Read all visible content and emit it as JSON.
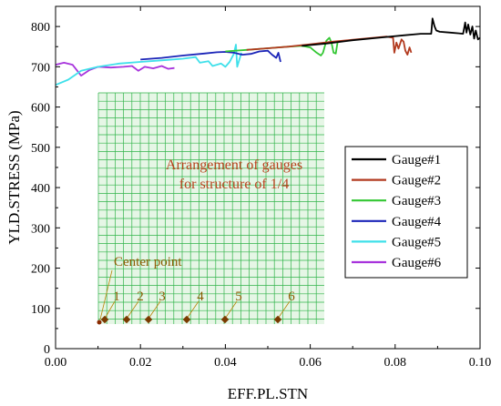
{
  "chart_data": {
    "type": "line",
    "xlabel": "EFF.PL.STN",
    "ylabel": "YLD.STRESS (MPa)",
    "xlim": [
      0,
      0.1
    ],
    "ylim": [
      0,
      850
    ],
    "xticks": [
      "0.00",
      "0.02",
      "0.04",
      "0.06",
      "0.08",
      "0.10"
    ],
    "yticks": [
      "0",
      "100",
      "200",
      "300",
      "400",
      "500",
      "600",
      "700",
      "800"
    ],
    "legend_position": "right",
    "series": [
      {
        "name": "Gauge#1",
        "color": "#000000",
        "points": [
          [
            0.058,
            752
          ],
          [
            0.064,
            758
          ],
          [
            0.07,
            766
          ],
          [
            0.076,
            772
          ],
          [
            0.082,
            778
          ],
          [
            0.086,
            782
          ],
          [
            0.0885,
            782
          ],
          [
            0.0888,
            820
          ],
          [
            0.0893,
            800
          ],
          [
            0.0897,
            790
          ],
          [
            0.0905,
            787
          ],
          [
            0.093,
            785
          ],
          [
            0.095,
            783
          ],
          [
            0.096,
            782
          ],
          [
            0.0965,
            810
          ],
          [
            0.0968,
            785
          ],
          [
            0.0972,
            805
          ],
          [
            0.0977,
            780
          ],
          [
            0.0982,
            800
          ],
          [
            0.0986,
            770
          ],
          [
            0.099,
            790
          ],
          [
            0.0995,
            768
          ],
          [
            0.1,
            772
          ]
        ]
      },
      {
        "name": "Gauge#2",
        "color": "#b23a1f",
        "points": [
          [
            0.045,
            742
          ],
          [
            0.05,
            746
          ],
          [
            0.055,
            750
          ],
          [
            0.06,
            756
          ],
          [
            0.065,
            762
          ],
          [
            0.07,
            767
          ],
          [
            0.074,
            771
          ],
          [
            0.078,
            775
          ],
          [
            0.0795,
            772
          ],
          [
            0.0798,
            735
          ],
          [
            0.0803,
            760
          ],
          [
            0.0808,
            745
          ],
          [
            0.0815,
            768
          ],
          [
            0.082,
            762
          ],
          [
            0.0824,
            740
          ],
          [
            0.0829,
            730
          ],
          [
            0.0834,
            748
          ],
          [
            0.0838,
            735
          ]
        ]
      },
      {
        "name": "Gauge#3",
        "color": "#33c733",
        "points": [
          [
            0.04,
            738
          ],
          [
            0.045,
            742
          ],
          [
            0.05,
            746
          ],
          [
            0.055,
            750
          ],
          [
            0.058,
            752
          ],
          [
            0.06,
            748
          ],
          [
            0.0615,
            735
          ],
          [
            0.0625,
            728
          ],
          [
            0.063,
            735
          ],
          [
            0.0638,
            765
          ],
          [
            0.0645,
            772
          ],
          [
            0.065,
            760
          ],
          [
            0.0655,
            735
          ],
          [
            0.066,
            733
          ],
          [
            0.0665,
            765
          ]
        ]
      },
      {
        "name": "Gauge#4",
        "color": "#1a24b8",
        "points": [
          [
            0.02,
            718
          ],
          [
            0.025,
            722
          ],
          [
            0.03,
            728
          ],
          [
            0.035,
            733
          ],
          [
            0.038,
            736
          ],
          [
            0.04,
            737
          ],
          [
            0.042,
            735
          ],
          [
            0.044,
            730
          ],
          [
            0.046,
            732
          ],
          [
            0.048,
            738
          ],
          [
            0.05,
            740
          ],
          [
            0.051,
            730
          ],
          [
            0.052,
            722
          ],
          [
            0.0525,
            735
          ],
          [
            0.053,
            712
          ]
        ]
      },
      {
        "name": "Gauge#5",
        "color": "#3fe0ea",
        "points": [
          [
            0.0,
            655
          ],
          [
            0.003,
            668
          ],
          [
            0.006,
            690
          ],
          [
            0.01,
            700
          ],
          [
            0.015,
            708
          ],
          [
            0.02,
            712
          ],
          [
            0.025,
            716
          ],
          [
            0.03,
            720
          ],
          [
            0.033,
            724
          ],
          [
            0.034,
            710
          ],
          [
            0.036,
            714
          ],
          [
            0.037,
            702
          ],
          [
            0.039,
            708
          ],
          [
            0.04,
            700
          ],
          [
            0.041,
            712
          ],
          [
            0.0415,
            722
          ],
          [
            0.042,
            732
          ],
          [
            0.0425,
            755
          ],
          [
            0.0428,
            700
          ],
          [
            0.0433,
            718
          ],
          [
            0.0438,
            735
          ]
        ]
      },
      {
        "name": "Gauge#6",
        "color": "#a733dc",
        "points": [
          [
            0.0,
            705
          ],
          [
            0.002,
            710
          ],
          [
            0.004,
            705
          ],
          [
            0.006,
            678
          ],
          [
            0.008,
            692
          ],
          [
            0.01,
            700
          ],
          [
            0.013,
            698
          ],
          [
            0.016,
            700
          ],
          [
            0.018,
            702
          ],
          [
            0.0195,
            690
          ],
          [
            0.021,
            700
          ],
          [
            0.023,
            696
          ],
          [
            0.025,
            702
          ],
          [
            0.0265,
            695
          ],
          [
            0.028,
            697
          ]
        ]
      }
    ],
    "inset": {
      "title_line1": "Arrangement of gauges",
      "title_line2": "for structure of 1/4",
      "center_label": "Center point",
      "gauge_numbers": [
        "1",
        "2",
        "3",
        "4",
        "5",
        "6"
      ]
    }
  }
}
